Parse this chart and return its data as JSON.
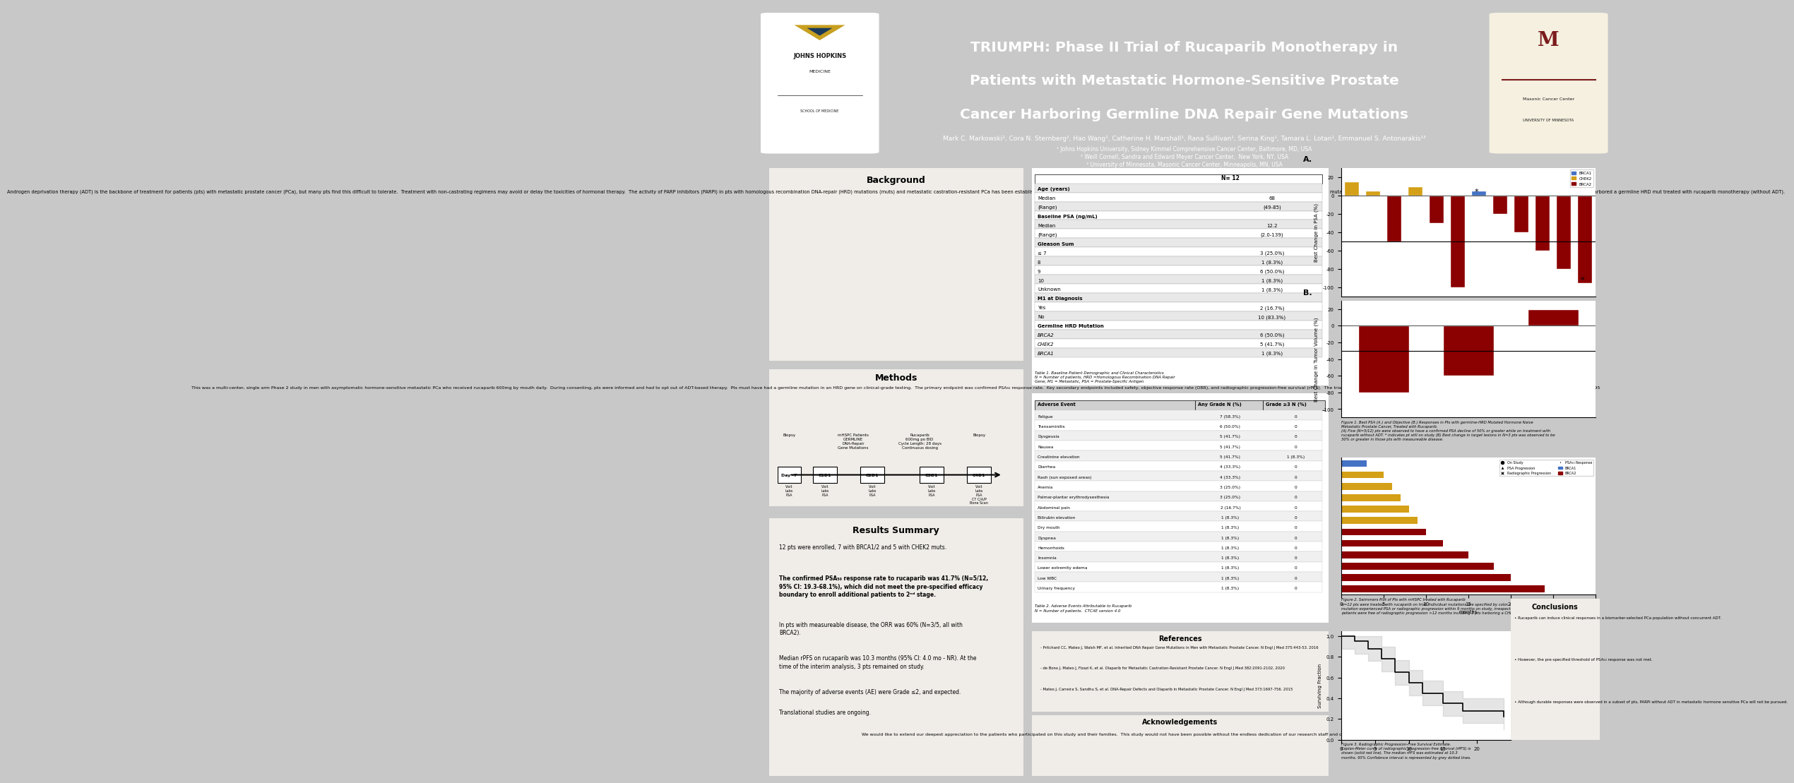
{
  "title_line1": "TRIUMPH: Phase II Trial of Rucaparib Monotherapy in",
  "title_line2": "Patients with Metastatic Hormone-Sensitive Prostate",
  "title_line3": "Cancer Harboring Germline DNA Repair Gene Mutations",
  "authors": "Mark C. Markowski¹, Cora N. Sternberg², Hao Wang¹, Catherine H. Marshall¹, Rana Sullivan¹, Serina King¹, Tamara L. Lotan¹, Emmanuel S. Antonarakis¹³",
  "affil1": "¹ Johns Hopkins University, Sidney Kimmel Comprehensive Cancer Center, Baltimore, MD, USA",
  "affil2": "² Weill Cornell, Sandra and Edward Meyer Cancer Center,  New York, NY, USA",
  "affil3": "³ University of Minnesota, Masonic Cancer Center, Minneapolis, MN, USA",
  "header_bg": "#2B4B7A",
  "poster_bg": "#C8C8C8",
  "panel_bg": "#F0EDE8",
  "background_text": "Androgen deprivation therapy (ADT) is the backbone of treatment for patients (pts) with metastatic prostate cancer (PCa), but many pts find this difficult to tolerate.  Treatment with non-castrating regimens may avoid or delay the toxicities of hormonal therapy.  The activity of PARP inhibitors (PARPi) in pts with homologous recombination DNA-repair (HRD) mutations (muts) and metastatic castration-resistant PCa has been established.  We hypothesized here that the benefit of PARPi can be maintained in the absence of ADT in a biomarker-selected (HRD mutated) population with PCa. We designed a Phase 2 study in men with hormone-naive, metastatic PCa who harbored a germline HRD mut treated with rucaparib monotherapy (without ADT).",
  "methods_text": "This was a multi-center, single arm Phase 2 study in men with asymptomatic hormone-sensitive metastatic PCa who received rucaparib 600mg by mouth daily.  During consenting, pts were informed and had to opt out of ADT-based therapy.  Pts must have had a germline mutation in an HRD gene on clinical-grade testing.  The primary endpoint was confirmed PSA₅₀ response rate.  Key secondary endpoints included safety, objective response rate (ORR), and radiographic progression-free survival (rPFS).  The trial was designed to detect a 25% absolute increase in PSA₅₀ response from a null of 50%.  Clinical Trial: NCT03413995",
  "results_text1": "12 pts were enrolled, 7 with BRCA1/2 and 5 with CHEK2 muts.",
  "results_text5": "The majority of adverse events (AE) were Grade ≤2, and expected.",
  "results_text6": "Translational studies are ongoing.",
  "table1_rows": [
    [
      "Age (years)",
      ""
    ],
    [
      "Median",
      "68"
    ],
    [
      "(Range)",
      "(49-85)"
    ],
    [
      "Baseline PSA (ng/mL)",
      ""
    ],
    [
      "Median",
      "12.2"
    ],
    [
      "(Range)",
      "(2.0-139)"
    ],
    [
      "Gleason Sum",
      ""
    ],
    [
      "≤ 7",
      "3 (25.0%)"
    ],
    [
      "8",
      "1 (8.3%)"
    ],
    [
      "9",
      "6 (50.0%)"
    ],
    [
      "10",
      "1 (8.3%)"
    ],
    [
      "Unknown",
      "1 (8.3%)"
    ],
    [
      "M1 at Diagnosis",
      ""
    ],
    [
      "Yes",
      "2 (16.7%)"
    ],
    [
      "No",
      "10 (83.3%)"
    ],
    [
      "Germline HRD Mutation",
      ""
    ],
    [
      "BRCA2",
      "6 (50.0%)"
    ],
    [
      "CHEK2",
      "5 (41.7%)"
    ],
    [
      "BRCA1",
      "1 (8.3%)"
    ]
  ],
  "table1_bold_rows": [
    0,
    3,
    6,
    12,
    15
  ],
  "table1_italic_rows": [
    16,
    17,
    18
  ],
  "table1_caption": "Table 1. Baseline Patient Demographic and Clinical Characteristics\nN = Number of patients, HRD =Homologous Recombination DNA Repair\nGene, M1 = Metastatic, PSA = Prostate-Specific Antigen",
  "table2_headers": [
    "Adverse Event",
    "Any Grade N (%)",
    "Grade ≥3 N (%)"
  ],
  "table2_rows": [
    [
      "Fatigue",
      "7 (58.3%)",
      "0"
    ],
    [
      "Transaminitis",
      "6 (50.0%)",
      "0"
    ],
    [
      "Dysgeusia",
      "5 (41.7%)",
      "0"
    ],
    [
      "Nausea",
      "5 (41.7%)",
      "0"
    ],
    [
      "Creatinine elevation",
      "5 (41.7%)",
      "1 (8.3%)"
    ],
    [
      "Diarrhea",
      "4 (33.3%)",
      "0"
    ],
    [
      "Rash (sun exposed areas)",
      "4 (33.3%)",
      "0"
    ],
    [
      "Anemia",
      "3 (25.0%)",
      "0"
    ],
    [
      "Palmar-plantar erythrodysesthesia",
      "3 (25.0%)",
      "0"
    ],
    [
      "Abdominal pain",
      "2 (16.7%)",
      "0"
    ],
    [
      "Bilirubin elevation",
      "1 (8.3%)",
      "0"
    ],
    [
      "Dry mouth",
      "1 (8.3%)",
      "0"
    ],
    [
      "Dyspnea",
      "1 (8.3%)",
      "0"
    ],
    [
      "Hemorrhoids",
      "1 (8.3%)",
      "0"
    ],
    [
      "Insomnia",
      "1 (8.3%)",
      "0"
    ],
    [
      "Lower extremity edema",
      "1 (8.3%)",
      "0"
    ],
    [
      "Low WBC",
      "1 (8.3%)",
      "0"
    ],
    [
      "Urinary frequency",
      "1 (8.3%)",
      "0"
    ]
  ],
  "table2_caption": "Table 2. Adverse Events Attributable to Rucaparib\nN = Number of patients.  CTCAE version 4.0",
  "references": [
    "Pritchard CC, Mateo J, Walsh MF, et al. Inherited DNA Repair Gene Mutations in Men with Metastatic Prostate Cancer. N Engl J Med 375:443-53. 2016",
    "de Bono J, Mateo J, Fizazi K, et al. Olaparib for Metastatic Castration-Resistant Prostate Cancer. N Engl J Med 382:2091-2102, 2020",
    "Mateo J, Carreira S, Sandhu S, et al. DNA-Repair Defects and Olaparib in Metastatic Prostate Cancer. N Engl J Med 373:1697-756. 2015"
  ],
  "acknowledgements": "We would like to extend our deepest appreciation to the patients who participated on this study and their families.  This study would not have been possible without the endless dedication of our research staff and coordinators across multiple centers.  Funding source: Clovis Oncology.",
  "conclusions": [
    "Rucaparib can induce clinical responses in a biomarker-selected PCa population without concurrent ADT.",
    "However, the pre-specified threshold of PSA₅₀ response was not met.",
    "Although durable responses were observed in a subset of pts, PARPi without ADT in metastatic hormone sensitive PCa will not be pursued."
  ],
  "psa_bar_colors": [
    "#D4A017",
    "#D4A017",
    "#8B0000",
    "#D4A017",
    "#8B0000",
    "#8B0000",
    "#4472C4",
    "#8B0000",
    "#8B0000",
    "#8B0000",
    "#8B0000",
    "#8B0000"
  ],
  "psa_bar_values": [
    15,
    5,
    -50,
    10,
    -30,
    -100,
    5,
    -20,
    -40,
    -60,
    -80,
    -95
  ],
  "brca1_color": "#4472C4",
  "chek2_color": "#D4A017",
  "brca2_color": "#8B0000"
}
